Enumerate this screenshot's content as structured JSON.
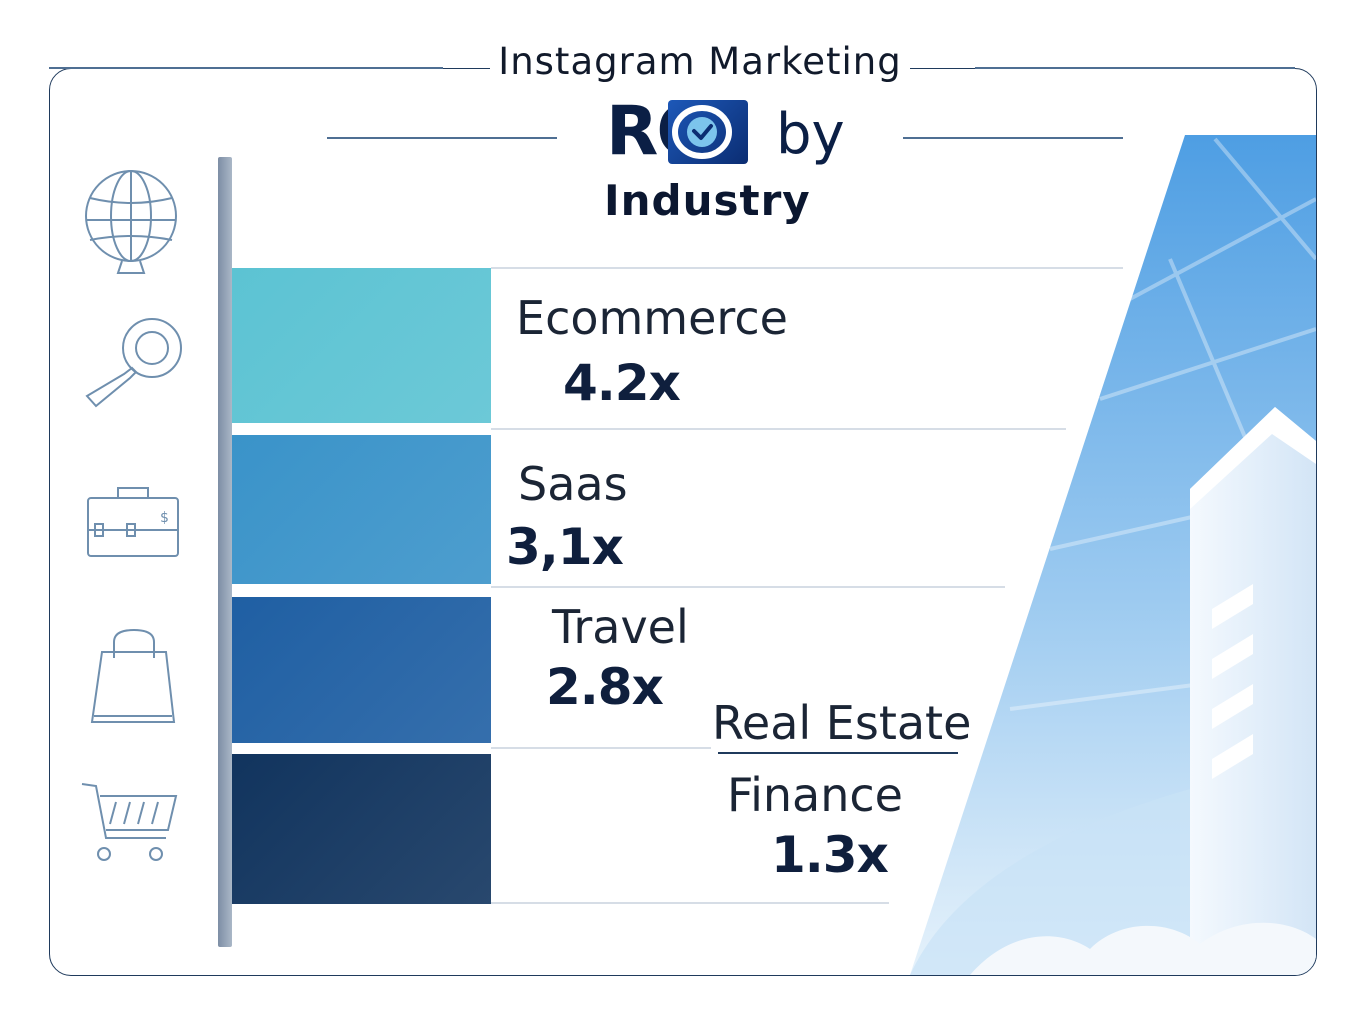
{
  "chart_data": {
    "type": "bar",
    "title": "Instagram Marketing ROI by Industry",
    "title_parts": {
      "line1": "Instagram Marketing",
      "roi_text": "RO",
      "by": "by",
      "line3": "Industry"
    },
    "categories": [
      "Ecommerce",
      "Saas",
      "Travel",
      "Real Estate",
      "Finance"
    ],
    "series": [
      {
        "values_display": [
          "4.2x",
          "3,1x",
          "2.8x",
          "",
          "1.3x"
        ],
        "values": [
          4.2,
          3.1,
          2.8,
          null,
          1.3
        ]
      }
    ],
    "bar_colors": [
      "#5cc3d3",
      "#3a93c9",
      "#1f5fa3",
      "#11345e"
    ]
  },
  "icons": [
    "globe-icon",
    "magnifier-icon",
    "briefcase-icon",
    "shopping-bag-icon",
    "shopping-cart-icon"
  ],
  "colors": {
    "border": "#1f3a5c",
    "text_dark": "#0f1f3d",
    "sky": "#4f9fe0"
  }
}
